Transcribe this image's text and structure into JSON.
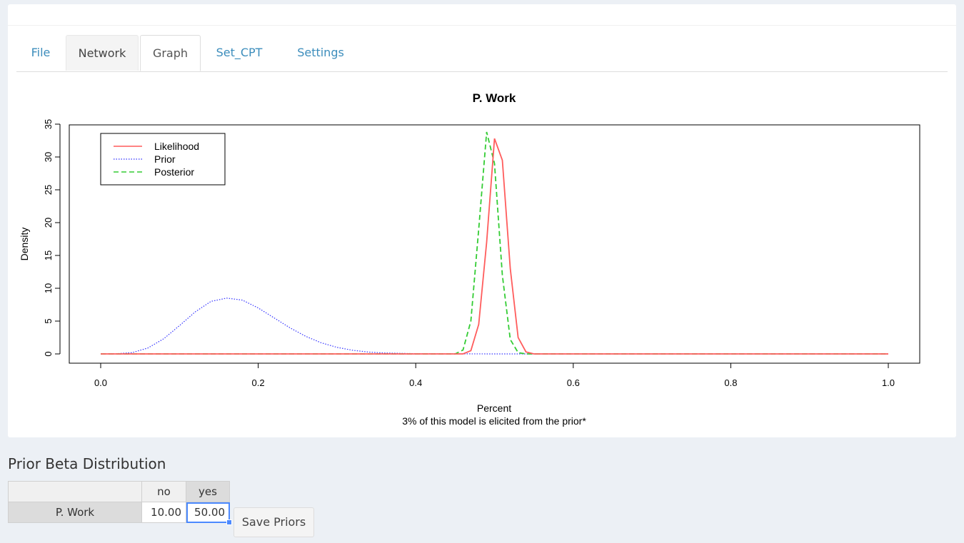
{
  "tabs": [
    {
      "label": "File"
    },
    {
      "label": "Network"
    },
    {
      "label": "Graph"
    },
    {
      "label": "Set_CPT"
    },
    {
      "label": "Settings"
    }
  ],
  "active_tab": "Graph",
  "chart_data": {
    "type": "line",
    "title": "P. Work",
    "xlabel": "Percent",
    "subtitle": "3% of this model is elicited from the prior*",
    "ylabel": "Density",
    "xlim": [
      0,
      1
    ],
    "ylim": [
      0,
      35
    ],
    "x_ticks": [
      "0.0",
      "0.2",
      "0.4",
      "0.6",
      "0.8",
      "1.0"
    ],
    "y_ticks": [
      "0",
      "5",
      "10",
      "15",
      "20",
      "25",
      "30",
      "35"
    ],
    "legend_position": "top-left",
    "series": [
      {
        "name": "Likelihood",
        "color": "#ff5c5c",
        "dash": "solid",
        "x": [
          0.0,
          0.46,
          0.47,
          0.48,
          0.49,
          0.5,
          0.51,
          0.52,
          0.53,
          0.54,
          0.55,
          1.0
        ],
        "y": [
          0,
          0,
          0.5,
          4.5,
          17,
          32.8,
          29.5,
          13,
          2.5,
          0.3,
          0,
          0
        ]
      },
      {
        "name": "Prior",
        "color": "#3333ff",
        "dash": "dotted",
        "x": [
          0.0,
          0.02,
          0.04,
          0.06,
          0.08,
          0.1,
          0.12,
          0.14,
          0.16,
          0.18,
          0.2,
          0.22,
          0.24,
          0.26,
          0.28,
          0.3,
          0.32,
          0.34,
          0.36,
          0.4,
          0.5,
          1.0
        ],
        "y": [
          0,
          0.02,
          0.2,
          0.9,
          2.3,
          4.3,
          6.4,
          8.0,
          8.5,
          8.2,
          7.0,
          5.5,
          4.0,
          2.7,
          1.7,
          1.0,
          0.55,
          0.28,
          0.14,
          0.03,
          0,
          0
        ]
      },
      {
        "name": "Posterior",
        "color": "#33cc33",
        "dash": "dashed",
        "x": [
          0.0,
          0.45,
          0.46,
          0.47,
          0.48,
          0.49,
          0.5,
          0.51,
          0.52,
          0.53,
          0.54,
          1.0
        ],
        "y": [
          0,
          0,
          0.6,
          5,
          19,
          33.8,
          29,
          12,
          2.2,
          0.2,
          0,
          0
        ]
      }
    ]
  },
  "prior_section": {
    "title": "Prior Beta Distribution",
    "columns": [
      "no",
      "yes"
    ],
    "rows": [
      {
        "label": "P. Work",
        "values": [
          "10.00",
          "50.00"
        ]
      }
    ],
    "save_label": "Save Priors"
  }
}
